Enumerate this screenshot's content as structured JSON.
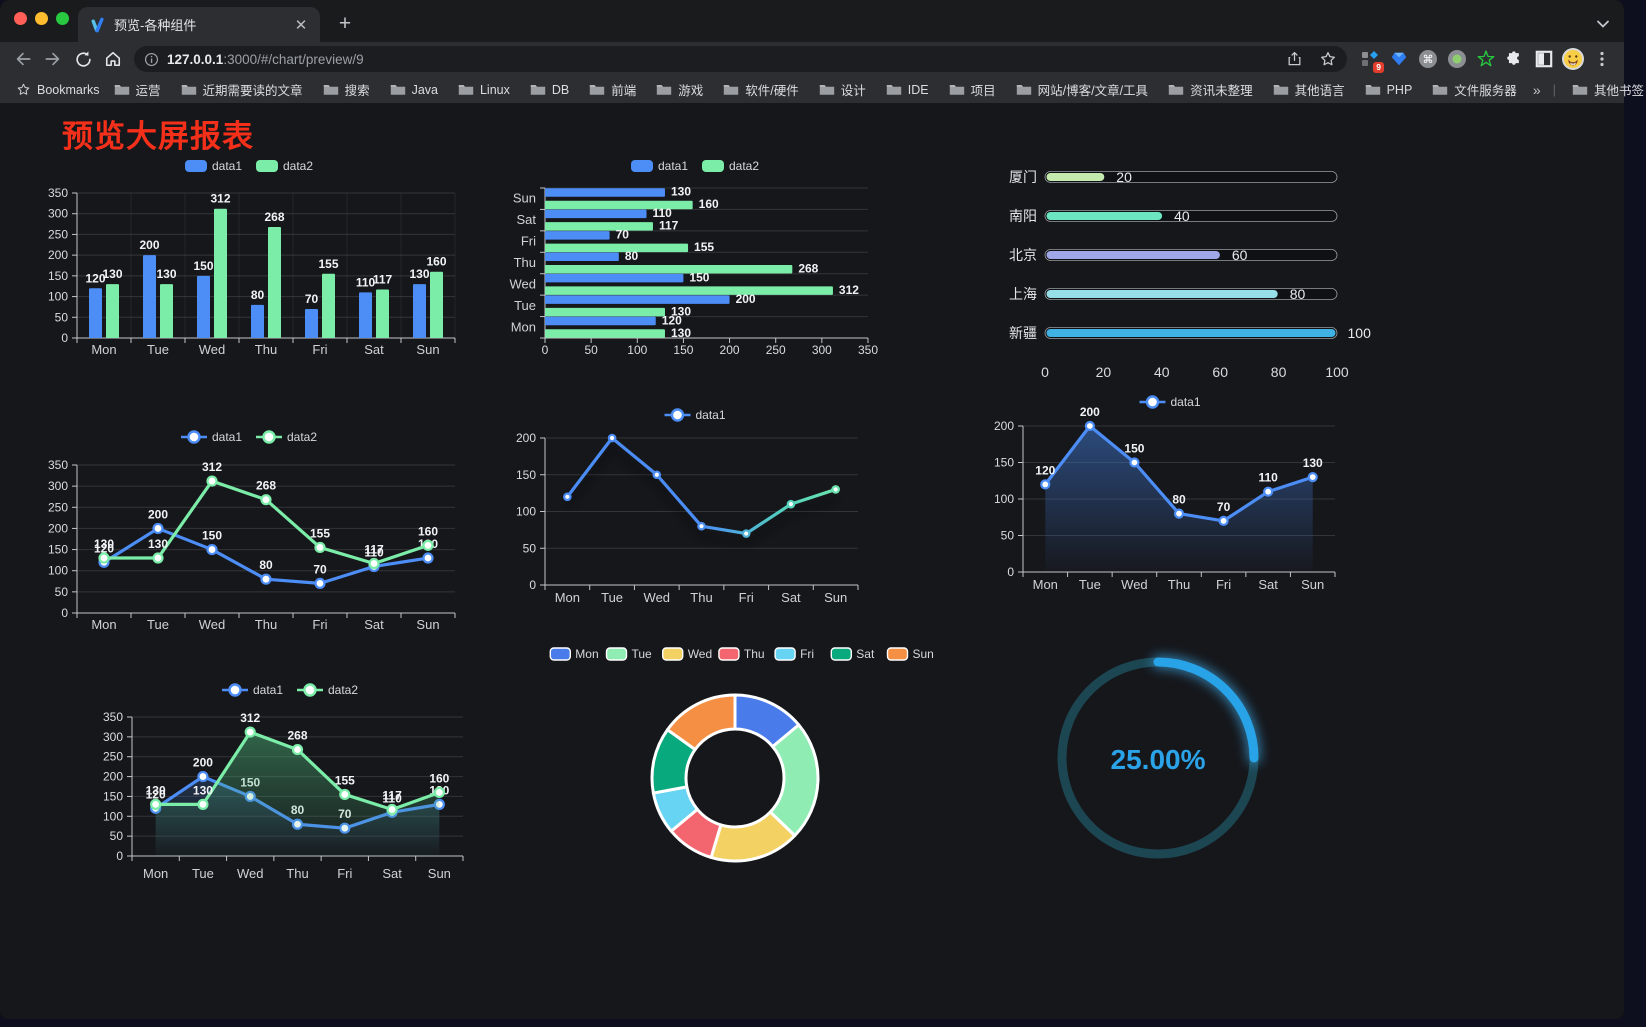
{
  "browser": {
    "tab_title": "预览-各种组件",
    "url_host": "127.0.0.1",
    "url_rest": ":3000/#/chart/preview/9",
    "bookmarks_label": "Bookmarks",
    "bookmarks": [
      "运营",
      "近期需要读的文章",
      "搜索",
      "Java",
      "Linux",
      "DB",
      "前端",
      "游戏",
      "软件/硬件",
      "设计",
      "IDE",
      "项目",
      "网站/博客/文章/工具",
      "资讯未整理",
      "其他语言",
      "PHP",
      "文件服务器"
    ],
    "bookmarks_overflow": "»",
    "other_bookmarks": "其他书签",
    "extension_badge": "9"
  },
  "page": {
    "title": "预览大屏报表",
    "title_color": "#f5301a"
  },
  "theme": {
    "blue": "#4C8DF6",
    "green": "#7BEDA8",
    "axis_line": "#c2c5ca",
    "axis_text": "#dadce0",
    "value_text": "#f2f3f5",
    "grid_line": "rgba(255,255,255,0.13)",
    "split_line": "rgba(255,255,255,0.06)"
  },
  "chart_data": [
    {
      "id": "c1",
      "type": "bar",
      "legend_position": "top",
      "categories": [
        "Mon",
        "Tue",
        "Wed",
        "Thu",
        "Fri",
        "Sat",
        "Sun"
      ],
      "series": [
        {
          "name": "data1",
          "color": "#4C8DF6",
          "values": [
            120,
            200,
            150,
            80,
            70,
            110,
            130
          ]
        },
        {
          "name": "data2",
          "color": "#7BEDA8",
          "values": [
            130,
            130,
            312,
            268,
            155,
            117,
            160
          ]
        }
      ],
      "ylim": [
        0,
        350
      ],
      "yticks": [
        0,
        50,
        100,
        150,
        200,
        250,
        300,
        350
      ],
      "value_labels": true
    },
    {
      "id": "c2",
      "type": "bar-horizontal",
      "legend_position": "top",
      "categories": [
        "Mon",
        "Tue",
        "Wed",
        "Thu",
        "Fri",
        "Sat",
        "Sun"
      ],
      "categories_displayed_top_to_bottom": [
        "Sun",
        "Sat",
        "Fri",
        "Thu",
        "Wed",
        "Tue",
        "Mon"
      ],
      "series": [
        {
          "name": "data1",
          "color": "#4C8DF6",
          "values": [
            120,
            200,
            150,
            80,
            70,
            110,
            130
          ]
        },
        {
          "name": "data2",
          "color": "#7BEDA8",
          "values": [
            130,
            130,
            312,
            268,
            155,
            117,
            160
          ]
        }
      ],
      "xlim": [
        0,
        350
      ],
      "xticks": [
        0,
        50,
        100,
        150,
        200,
        250,
        300,
        350
      ],
      "value_labels": true
    },
    {
      "id": "c3",
      "type": "progress-bars",
      "categories": [
        "厦门",
        "南阳",
        "北京",
        "上海",
        "新疆"
      ],
      "values": [
        20,
        40,
        60,
        80,
        100
      ],
      "colors": [
        "#c4ebad",
        "#6be6c1",
        "#a0a7e6",
        "#96dee8",
        "#3fb1e3"
      ],
      "xlim": [
        0,
        100
      ],
      "xticks": [
        0,
        20,
        40,
        60,
        80,
        100
      ],
      "value_labels": true
    },
    {
      "id": "c4",
      "type": "line",
      "legend_position": "top",
      "categories": [
        "Mon",
        "Tue",
        "Wed",
        "Thu",
        "Fri",
        "Sat",
        "Sun"
      ],
      "series": [
        {
          "name": "data1",
          "color": "#4C8DF6",
          "values": [
            120,
            200,
            150,
            80,
            70,
            110,
            130
          ]
        },
        {
          "name": "data2",
          "color": "#7BEDA8",
          "values": [
            130,
            130,
            312,
            268,
            155,
            117,
            160
          ]
        }
      ],
      "ylim": [
        0,
        350
      ],
      "yticks": [
        0,
        50,
        100,
        150,
        200,
        250,
        300,
        350
      ],
      "value_labels": true
    },
    {
      "id": "c5",
      "type": "line",
      "legend_position": "top",
      "shadow": true,
      "categories": [
        "Mon",
        "Tue",
        "Wed",
        "Thu",
        "Fri",
        "Sat",
        "Sun"
      ],
      "series": [
        {
          "name": "data1",
          "gradient": [
            "#4C8DF6",
            "#4C8DF6",
            "#52cfc0",
            "#74EAA6"
          ],
          "gradient_stops": [
            0,
            0.5,
            0.75,
            1
          ],
          "values": [
            120,
            200,
            150,
            80,
            70,
            110,
            130
          ]
        }
      ],
      "ylim": [
        0,
        200
      ],
      "yticks": [
        0,
        50,
        100,
        150,
        200
      ],
      "value_labels": false
    },
    {
      "id": "c6",
      "type": "line",
      "legend_position": "top",
      "categories": [
        "Mon",
        "Tue",
        "Wed",
        "Thu",
        "Fri",
        "Sat",
        "Sun"
      ],
      "series": [
        {
          "name": "data1",
          "color": "#4C8DF6",
          "values": [
            120,
            200,
            150,
            80,
            70,
            110,
            130
          ],
          "area": [
            "rgba(58,110,190,0.60)",
            "rgba(58,110,190,0.02)"
          ]
        }
      ],
      "ylim": [
        0,
        200
      ],
      "yticks": [
        0,
        50,
        100,
        150,
        200
      ],
      "value_labels": true
    },
    {
      "id": "c7",
      "type": "line",
      "legend_position": "top",
      "categories": [
        "Mon",
        "Tue",
        "Wed",
        "Thu",
        "Fri",
        "Sat",
        "Sun"
      ],
      "series": [
        {
          "name": "data1",
          "color": "#4C8DF6",
          "values": [
            120,
            200,
            150,
            80,
            70,
            110,
            130
          ],
          "area": [
            "rgba(60,110,185,0.50)",
            "rgba(60,110,185,0.02)"
          ]
        },
        {
          "name": "data2",
          "color": "#7BEDA8",
          "values": [
            130,
            130,
            312,
            268,
            155,
            117,
            160
          ],
          "area": [
            "rgba(75,180,120,0.55)",
            "rgba(75,180,120,0.02)"
          ]
        }
      ],
      "ylim": [
        0,
        350
      ],
      "yticks": [
        0,
        50,
        100,
        150,
        200,
        250,
        300,
        350
      ],
      "value_labels": true
    },
    {
      "id": "c8",
      "type": "pie",
      "legend_position": "top",
      "donut": true,
      "labels": [
        "Mon",
        "Tue",
        "Wed",
        "Thu",
        "Fri",
        "Sat",
        "Sun"
      ],
      "values": [
        120,
        200,
        150,
        80,
        70,
        110,
        130
      ],
      "colors": [
        "#4a7beb",
        "#8fedb4",
        "#f3d163",
        "#f4666f",
        "#67d4f4",
        "#08a97d",
        "#f58f44"
      ]
    },
    {
      "id": "c9",
      "type": "gauge",
      "value": 25,
      "display": "25.00%",
      "arc_color": "#28a3e8",
      "track_color": "#1d4653",
      "text_color": "#2ba3e8"
    }
  ]
}
